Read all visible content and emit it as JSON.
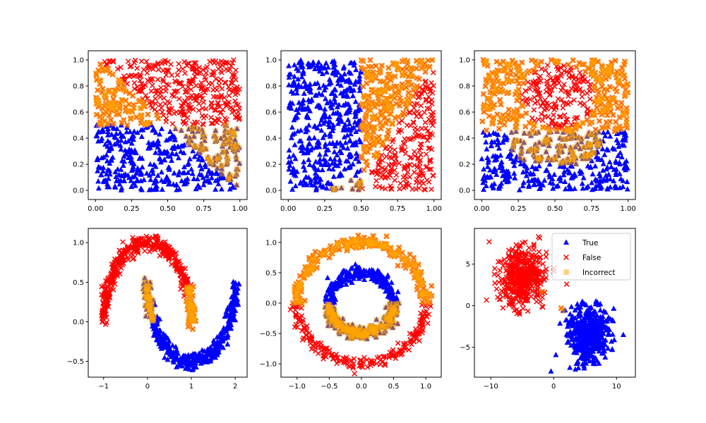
{
  "colors": {
    "true": "#0000FF",
    "false": "#FF0000",
    "incorrect": "#FFA500"
  },
  "chart_data": [
    {
      "type": "scatter",
      "title": "",
      "xlabel": "",
      "ylabel": "",
      "dataset": "uniform square, class boundary y=0.5",
      "n": 900,
      "xlim": [
        -0.05,
        1.05
      ],
      "ylim": [
        -0.07,
        1.07
      ],
      "xticks": [
        0,
        0.25,
        0.5,
        0.75,
        1
      ],
      "xticklabels": [
        "0.00",
        "0.25",
        "0.50",
        "0.75",
        "1.00"
      ],
      "yticks": [
        0,
        0.2,
        0.4,
        0.6,
        0.8,
        1
      ],
      "yticklabels": [
        "0.0",
        "0.2",
        "0.4",
        "0.6",
        "0.8",
        "1.0"
      ]
    },
    {
      "type": "scatter",
      "title": "",
      "xlabel": "",
      "ylabel": "",
      "dataset": "uniform square, class boundary x=0.5",
      "n": 900,
      "xlim": [
        -0.05,
        1.05
      ],
      "ylim": [
        -0.07,
        1.07
      ],
      "xticks": [
        0,
        0.25,
        0.5,
        0.75,
        1
      ],
      "xticklabels": [
        "0.00",
        "0.25",
        "0.50",
        "0.75",
        "1.00"
      ],
      "yticks": [
        0,
        0.2,
        0.4,
        0.6,
        0.8,
        1
      ],
      "yticklabels": [
        "0.0",
        "0.2",
        "0.4",
        "0.6",
        "0.8",
        "1.0"
      ]
    },
    {
      "type": "scatter",
      "title": "",
      "xlabel": "",
      "ylabel": "",
      "dataset": "uniform square, class boundary y=0.45 with circular prediction",
      "n": 900,
      "xlim": [
        -0.05,
        1.05
      ],
      "ylim": [
        -0.07,
        1.07
      ],
      "xticks": [
        0,
        0.25,
        0.5,
        0.75,
        1
      ],
      "xticklabels": [
        "0.00",
        "0.25",
        "0.50",
        "0.75",
        "1.00"
      ],
      "yticks": [
        0,
        0.2,
        0.4,
        0.6,
        0.8,
        1
      ],
      "yticklabels": [
        "0.0",
        "0.2",
        "0.4",
        "0.6",
        "0.8",
        "1.0"
      ]
    },
    {
      "type": "scatter",
      "title": "",
      "xlabel": "",
      "ylabel": "",
      "dataset": "two moons, noise 0.05",
      "n": 900,
      "xlim": [
        -1.35,
        2.27
      ],
      "ylim": [
        -0.7,
        1.18
      ],
      "xticks": [
        -1,
        0,
        1,
        2
      ],
      "xticklabels": [
        "−1",
        "0",
        "1",
        "2"
      ],
      "yticks": [
        -0.5,
        0,
        0.5,
        1
      ],
      "yticklabels": [
        "−0.5",
        "0.0",
        "0.5",
        "1.0"
      ]
    },
    {
      "type": "scatter",
      "title": "",
      "xlabel": "",
      "ylabel": "",
      "dataset": "concentric circles, radii 1.0 and 0.5",
      "n": 900,
      "xlim": [
        -1.25,
        1.24
      ],
      "ylim": [
        -1.22,
        1.23
      ],
      "xticks": [
        -1,
        -0.5,
        0,
        0.5,
        1
      ],
      "xticklabels": [
        "−1.0",
        "−0.5",
        "0.0",
        "0.5",
        "1.0"
      ],
      "yticks": [
        -1,
        -0.5,
        0,
        0.5,
        1
      ],
      "yticklabels": [
        "−1.0",
        "−0.5",
        "0.0",
        "0.5",
        "1.0"
      ]
    },
    {
      "type": "scatter",
      "title": "",
      "xlabel": "",
      "ylabel": "",
      "dataset": "two gaussian blobs, centers (5.5,-3.5) True and (-5,3.5) False",
      "n": 900,
      "xlim": [
        -12.6,
        13.0
      ],
      "ylim": [
        -8.6,
        9.3
      ],
      "xticks": [
        -10,
        0,
        10
      ],
      "xticklabels": [
        "−10",
        "0",
        "10"
      ],
      "yticks": [
        -5,
        0,
        5
      ],
      "yticklabels": [
        "−5",
        "0",
        "5"
      ],
      "legend": {
        "placement": "top-right",
        "entries": [
          "True",
          "False",
          "Incorrect"
        ]
      }
    }
  ]
}
